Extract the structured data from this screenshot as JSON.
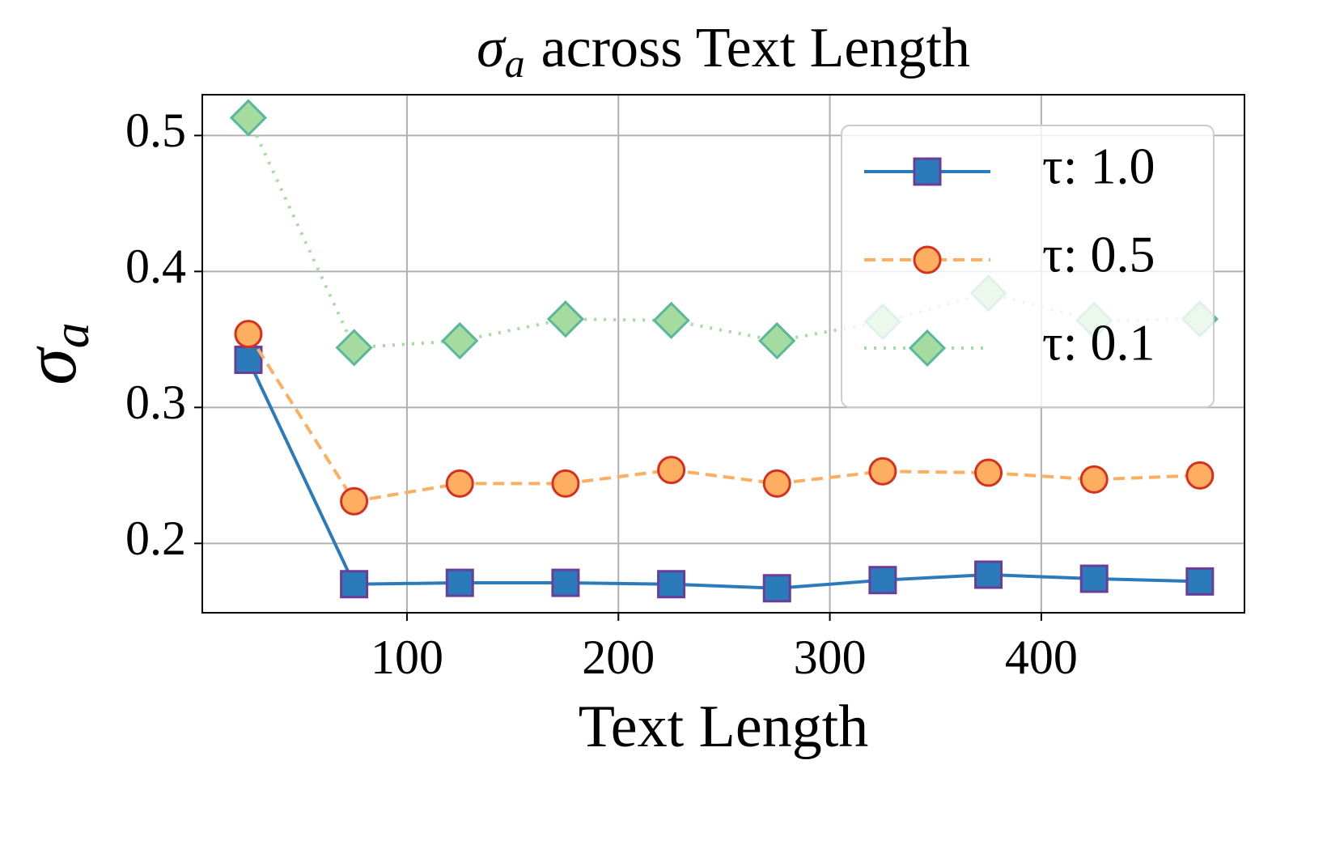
{
  "chart_data": {
    "type": "line",
    "title": {
      "symbol": "σ",
      "subscript": "a",
      "text": "across Text Length"
    },
    "x_label": "Text Length",
    "y_label": {
      "symbol": "σ",
      "subscript": "a"
    },
    "x": [
      25,
      75,
      125,
      175,
      225,
      275,
      325,
      375,
      425,
      475
    ],
    "series": [
      {
        "name": "τ: 1.0",
        "color": "#2b7bba",
        "edge_color": "#6a3d9a",
        "marker": "square",
        "linestyle": "solid",
        "values": [
          0.335,
          0.17,
          0.171,
          0.171,
          0.17,
          0.167,
          0.173,
          0.177,
          0.174,
          0.172
        ]
      },
      {
        "name": "τ: 0.5",
        "color": "#fdae61",
        "edge_color": "#d7301f",
        "marker": "circle",
        "linestyle": "dashed",
        "values": [
          0.354,
          0.231,
          0.244,
          0.244,
          0.254,
          0.244,
          0.253,
          0.252,
          0.247,
          0.25
        ]
      },
      {
        "name": "τ: 0.1",
        "color": "#a6dba0",
        "edge_color": "#5ab89a",
        "marker": "diamond",
        "linestyle": "dotted",
        "values": [
          0.513,
          0.344,
          0.349,
          0.365,
          0.364,
          0.349,
          0.363,
          0.384,
          0.364,
          0.365
        ]
      }
    ],
    "xlim": [
      3.2,
      496.1
    ],
    "xticks": [
      100,
      200,
      300,
      400
    ],
    "ylim": [
      0.149,
      0.53
    ],
    "yticks": [
      0.2,
      0.3,
      0.4,
      0.5
    ],
    "grid": true,
    "legend": "upper right"
  }
}
